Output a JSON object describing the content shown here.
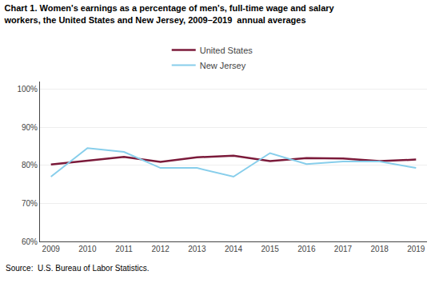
{
  "chart_data": {
    "type": "line",
    "title": "Chart 1. Women's earnings as a percentage of men's, full-time wage and salary\nworkers, the United States and New Jersey, 2009–2019  annual averages",
    "x": [
      2009,
      2010,
      2011,
      2012,
      2013,
      2014,
      2015,
      2016,
      2017,
      2018,
      2019
    ],
    "series": [
      {
        "name": "United States",
        "color": "#7B1A3A",
        "values": [
          80.2,
          81.2,
          82.2,
          80.9,
          82.1,
          82.5,
          81.1,
          81.9,
          81.8,
          81.1,
          81.5
        ]
      },
      {
        "name": "New Jersey",
        "color": "#87CEEB",
        "values": [
          77.0,
          84.5,
          83.5,
          79.3,
          79.3,
          77.0,
          83.2,
          80.3,
          81.0,
          81.0,
          79.3
        ]
      }
    ],
    "xlim": [
      2008.7,
      2019.3
    ],
    "xticks": [
      2009,
      2010,
      2011,
      2012,
      2013,
      2014,
      2015,
      2016,
      2017,
      2018,
      2019
    ],
    "ylim": [
      60,
      102
    ],
    "yticks": [
      {
        "value": 60,
        "label": "60%"
      },
      {
        "value": 70,
        "label": "70%"
      },
      {
        "value": 80,
        "label": "80%"
      },
      {
        "value": 90,
        "label": "90%"
      },
      {
        "value": 100,
        "label": "100%"
      }
    ],
    "grid": true,
    "legend": "top",
    "annotations": [
      "Source:  U.S. Bureau of Labor Statistics."
    ]
  }
}
